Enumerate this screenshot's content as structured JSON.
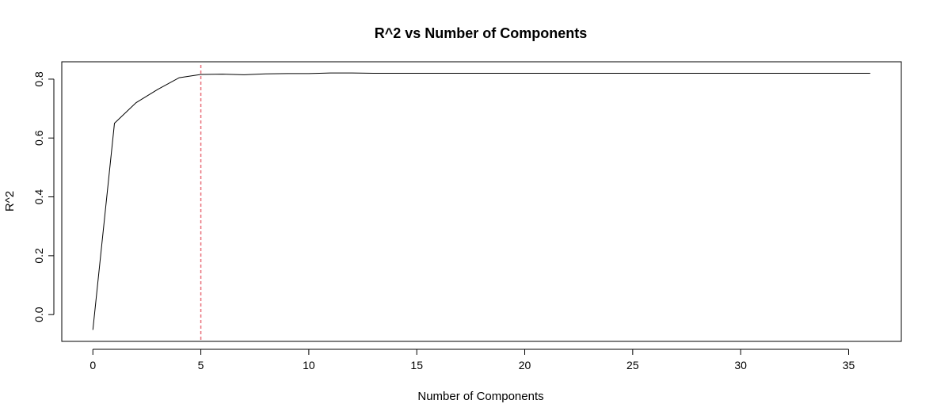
{
  "chart_data": {
    "type": "line",
    "title": "R^2 vs Number of Components",
    "xlabel": "Number of Components",
    "ylabel": "R^2",
    "x": [
      0,
      1,
      2,
      3,
      4,
      5,
      6,
      7,
      8,
      9,
      10,
      11,
      12,
      13,
      14,
      15,
      16,
      17,
      18,
      19,
      20,
      21,
      22,
      23,
      24,
      25,
      26,
      27,
      28,
      29,
      30,
      31,
      32,
      33,
      34,
      35,
      36
    ],
    "series": [
      {
        "values": [
          -0.052,
          0.65,
          0.72,
          0.765,
          0.805,
          0.816,
          0.817,
          0.815,
          0.818,
          0.819,
          0.819,
          0.821,
          0.821,
          0.82,
          0.82,
          0.82,
          0.82,
          0.82,
          0.82,
          0.82,
          0.82,
          0.82,
          0.82,
          0.82,
          0.82,
          0.82,
          0.82,
          0.82,
          0.82,
          0.82,
          0.82,
          0.82,
          0.82,
          0.82,
          0.82,
          0.82,
          0.82
        ],
        "color": "#000000"
      }
    ],
    "vline": {
      "x": 5,
      "color": "#e8707a",
      "style": "dashed"
    },
    "xlim": [
      -1.44,
      37.44
    ],
    "ylim": [
      -0.091,
      0.859
    ],
    "xticks": [
      0,
      5,
      10,
      15,
      20,
      25,
      30,
      35
    ],
    "xtick_labels": [
      "0",
      "5",
      "10",
      "15",
      "20",
      "25",
      "30",
      "35"
    ],
    "yticks": [
      0.0,
      0.2,
      0.4,
      0.6,
      0.8
    ],
    "ytick_labels": [
      "0.0",
      "0.2",
      "0.4",
      "0.6",
      "0.8"
    ],
    "grid": false,
    "legend": "none"
  }
}
